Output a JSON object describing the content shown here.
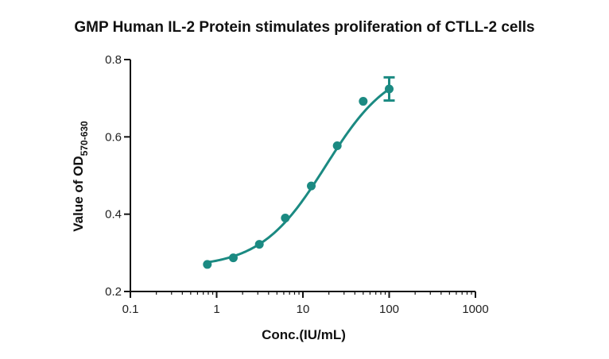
{
  "chart_data": {
    "type": "scatter",
    "title": "GMP Human IL-2 Protein stimulates proliferation of CTLL-2 cells",
    "xlabel": "Conc.(IU/mL)",
    "ylabel": "Value of OD",
    "ylabel_subscript": "570-630",
    "x_scale": "log",
    "xlim": [
      0.1,
      1000
    ],
    "ylim": [
      0.2,
      0.8
    ],
    "x_ticks": [
      0.1,
      1,
      10,
      100,
      1000
    ],
    "x_tick_labels": [
      "0.1",
      "1",
      "10",
      "100",
      "1000"
    ],
    "y_ticks": [
      0.2,
      0.4,
      0.6,
      0.8
    ],
    "y_tick_labels": [
      "0.2",
      "0.4",
      "0.6",
      "0.8"
    ],
    "grid": false,
    "color": "#1b8a82",
    "series": [
      {
        "x": [
          0.78,
          1.56,
          3.125,
          6.25,
          12.5,
          25,
          50,
          100
        ],
        "y": [
          0.27,
          0.287,
          0.322,
          0.39,
          0.473,
          0.577,
          0.692,
          0.724
        ],
        "error": [
          0,
          0,
          0,
          0,
          0,
          0,
          0,
          0.03
        ]
      }
    ],
    "fit": {
      "type": "4PL",
      "bottom": 0.262,
      "top": 0.79,
      "ec50": 18.5,
      "hill": 1.15,
      "x_range": [
        0.78,
        100
      ]
    }
  }
}
